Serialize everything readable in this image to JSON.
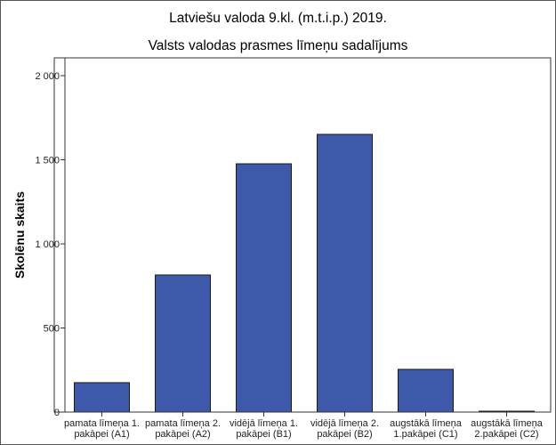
{
  "chart_data": {
    "type": "bar",
    "title": "Latviešu valoda 9.kl. (m.t.i.p.) 2019.",
    "subtitle": "Valsts valodas prasmes līmeņu sadalījums",
    "xlabel": "",
    "ylabel": "Skolēnu skaits",
    "ylim": [
      0,
      2100
    ],
    "yticks": [
      0,
      500,
      1000,
      1500,
      2000
    ],
    "ytick_labels": [
      "0",
      "500",
      "1 000",
      "1 500",
      "2 000"
    ],
    "categories": [
      [
        "pamata līmeņa 1.",
        "pakāpei (A1)"
      ],
      [
        "pamata līmeņa 2.",
        "pakāpei (A2)"
      ],
      [
        "vidējā līmeņa 1.",
        "pakāpei (B1)"
      ],
      [
        "vidējā līmeņa 2.",
        "pakāpei (B2)"
      ],
      [
        "augstākā līmeņa",
        "1.pakāpei (C1)"
      ],
      [
        "augstākā līmeņa",
        "2.pakāpei (C2)"
      ]
    ],
    "values": [
      175,
      815,
      1476,
      1651,
      254,
      5
    ],
    "bar_color": "#3F59AA",
    "grid": false,
    "legend": "none"
  }
}
